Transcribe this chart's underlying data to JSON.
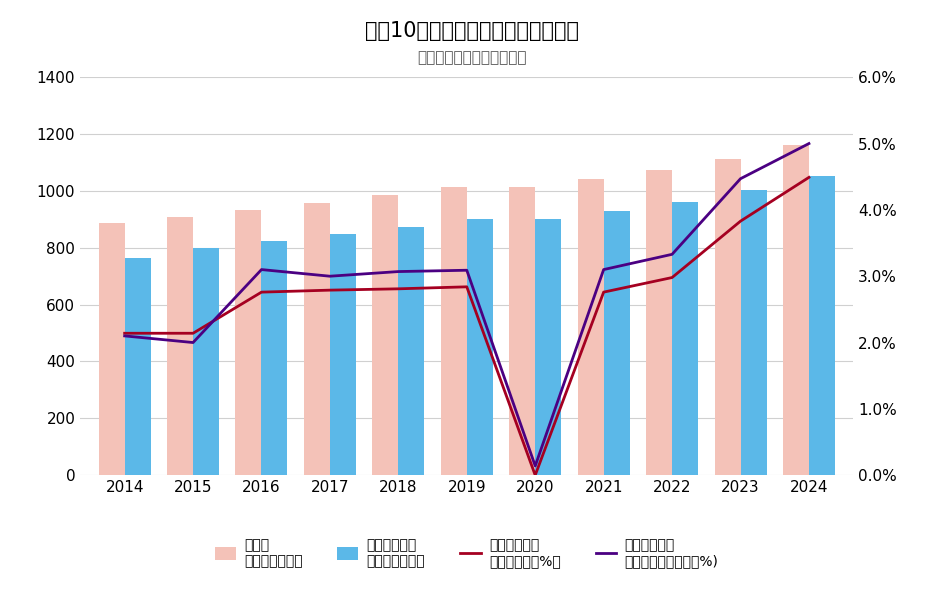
{
  "title": "過去10年間における最低賃金の変化",
  "subtitle": "（全国加重平均・東京都）",
  "years": [
    2014,
    2015,
    2016,
    2017,
    2018,
    2019,
    2020,
    2021,
    2022,
    2023,
    2024
  ],
  "tokyo_wage": [
    888,
    907,
    932,
    958,
    985,
    1013,
    1013,
    1041,
    1072,
    1113,
    1163
  ],
  "national_wage": [
    764,
    798,
    823,
    848,
    874,
    901,
    902,
    930,
    961,
    1004,
    1054
  ],
  "tokyo_rate": [
    2.14,
    2.14,
    2.76,
    2.79,
    2.81,
    2.84,
    0.0,
    2.76,
    2.98,
    3.83,
    4.49
  ],
  "national_rate": [
    2.1,
    2.0,
    3.1,
    3.0,
    3.07,
    3.09,
    0.14,
    3.1,
    3.33,
    4.47,
    5.0
  ],
  "tokyo_bar_color": "#f4c2b8",
  "national_bar_color": "#5bb8e8",
  "tokyo_line_color": "#a50021",
  "national_line_color": "#4b0082",
  "bar_width": 0.38,
  "left_ylim": [
    0,
    1400
  ],
  "right_ylim": [
    0.0,
    6.0
  ],
  "left_yticks": [
    0,
    200,
    400,
    600,
    800,
    1000,
    1200,
    1400
  ],
  "right_yticks": [
    0.0,
    1.0,
    2.0,
    3.0,
    4.0,
    5.0,
    6.0
  ],
  "legend_row1": [
    "東京都",
    "全国加重平均",
    "東京都前年比",
    "全国加重平均"
  ],
  "legend_row2": [
    "最低賃金（円）",
    "最低賃金（円）",
    "引き上げ率（%）",
    "前年比引き上げ率（%)"
  ],
  "background_color": "#ffffff",
  "grid_color": "#d0d0d0"
}
